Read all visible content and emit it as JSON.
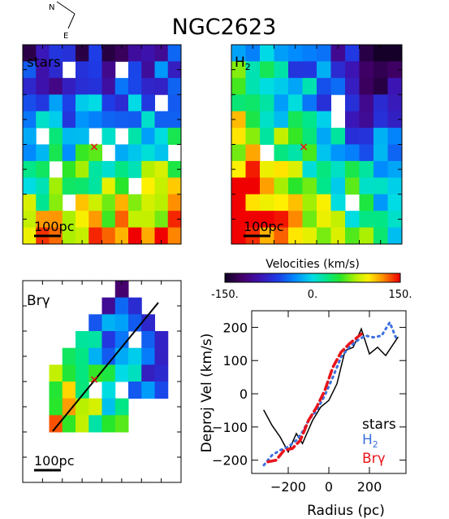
{
  "title": "NGC2623",
  "compass": {
    "north": "N",
    "east": "E"
  },
  "panels": {
    "stars": {
      "label": "stars",
      "scalebar": "100pc"
    },
    "h2": {
      "label_main": "H",
      "label_sub": "2",
      "scalebar": "100pc"
    },
    "brg": {
      "label": "Brγ",
      "scalebar": "100pc"
    }
  },
  "colorbar": {
    "title": "Velocities (km/s)",
    "ticks": [
      "-150.",
      "0.",
      "150."
    ],
    "range": [
      -150,
      150
    ]
  },
  "chart_data": {
    "type": "line",
    "xlabel": "Radius (pc)",
    "ylabel": "Deproj Vel (km/s)",
    "xlim": [
      -380,
      380
    ],
    "ylim": [
      -240,
      250
    ],
    "xticks": [
      -200,
      0,
      200
    ],
    "xtick_labels": [
      "−200",
      "0",
      "200"
    ],
    "yticks": [
      -200,
      -100,
      0,
      100,
      200
    ],
    "ytick_labels": [
      "−200",
      "−100",
      "0",
      "100",
      "200"
    ],
    "legend_position": "bottom-right",
    "series": [
      {
        "name": "stars",
        "color": "#000000",
        "style": "solid",
        "x": [
          -320,
          -280,
          -240,
          -200,
          -160,
          -130,
          -80,
          -40,
          0,
          40,
          80,
          120,
          160,
          200,
          240,
          280,
          340
        ],
        "y": [
          -50,
          -95,
          -130,
          -175,
          -120,
          -150,
          -80,
          -40,
          -20,
          30,
          130,
          140,
          195,
          120,
          140,
          115,
          170
        ]
      },
      {
        "name": "H",
        "name_sub": "2",
        "color": "#3b6fe0",
        "style": "dotted",
        "x": [
          -320,
          -280,
          -240,
          -200,
          -160,
          -130,
          -100,
          -60,
          -20,
          20,
          60,
          100,
          140,
          180,
          220,
          260,
          300,
          330
        ],
        "y": [
          -215,
          -185,
          -170,
          -160,
          -140,
          -115,
          -80,
          -50,
          -5,
          50,
          110,
          140,
          160,
          175,
          170,
          175,
          215,
          170
        ]
      },
      {
        "name": "Brγ",
        "color": "#e8141a",
        "style": "dashed",
        "x": [
          -300,
          -260,
          -220,
          -180,
          -140,
          -100,
          -60,
          -20,
          20,
          60,
          100,
          140,
          160
        ],
        "y": [
          -205,
          -200,
          -170,
          -165,
          -140,
          -80,
          -40,
          10,
          80,
          125,
          150,
          170,
          180
        ]
      }
    ]
  }
}
